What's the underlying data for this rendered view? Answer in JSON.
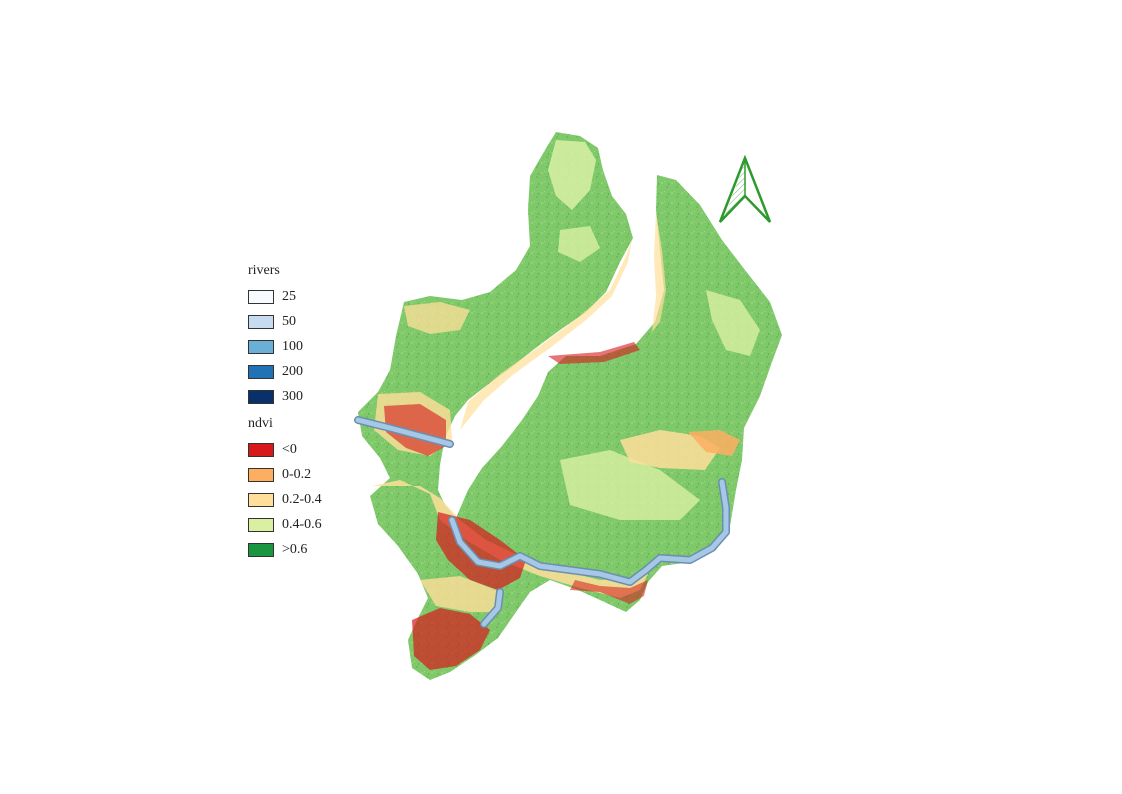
{
  "legend": {
    "rivers": {
      "title": "rivers",
      "items": [
        {
          "label": "25",
          "color": "#f7fbff"
        },
        {
          "label": "50",
          "color": "#c6dbef"
        },
        {
          "label": "100",
          "color": "#6baed6"
        },
        {
          "label": "200",
          "color": "#2171b5"
        },
        {
          "label": "300",
          "color": "#08306b"
        }
      ]
    },
    "ndvi": {
      "title": "ndvi",
      "items": [
        {
          "label": "<0",
          "color": "#d7191c"
        },
        {
          "label": "0-0.2",
          "color": "#fdae61"
        },
        {
          "label": "0.2-0.4",
          "color": "#ffdf9a"
        },
        {
          "label": "0.4-0.6",
          "color": "#d9f0a3"
        },
        {
          "label": ">0.6",
          "color": "#1a9641"
        }
      ]
    }
  },
  "map": {
    "base_color": "#7fc96b",
    "river_color": "#a6c8e6",
    "north_arrow_color": "#2e9a2e"
  }
}
